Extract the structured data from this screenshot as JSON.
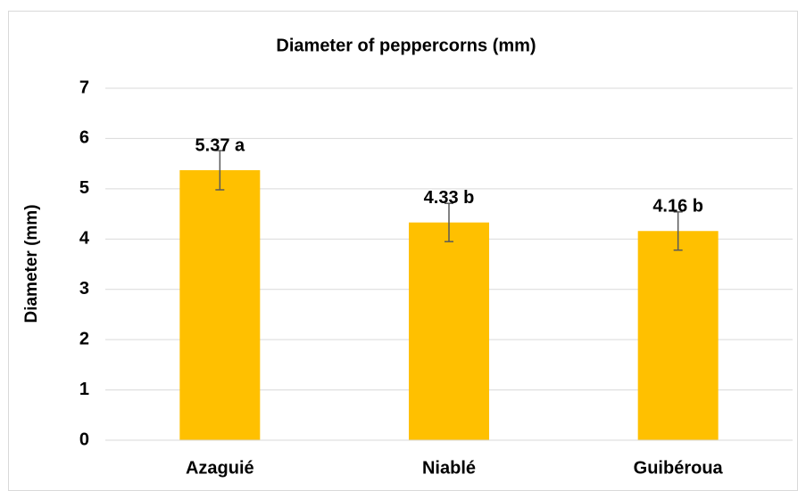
{
  "chart_data": {
    "type": "bar",
    "title": "Diameter of peppercorns (mm)",
    "y_label": "Diameter (mm)",
    "categories": [
      "Azaguié",
      "Niablé",
      "Guibéroua"
    ],
    "values": [
      5.37,
      4.33,
      4.16
    ],
    "value_labels": [
      "5.37 a",
      "4.33 b",
      "4.16 b"
    ],
    "errors": [
      0.39,
      0.38,
      0.38
    ],
    "color": "#ffc000",
    "ylim": [
      0,
      7
    ],
    "yticks": [
      0,
      1,
      2,
      3,
      4,
      5,
      6,
      7
    ],
    "grid": true
  }
}
